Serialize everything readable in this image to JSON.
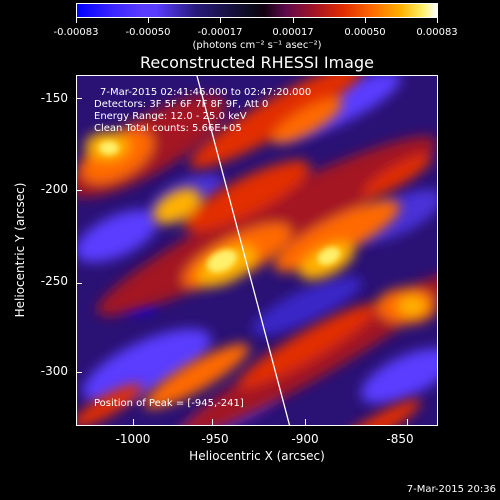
{
  "colorbar": {
    "ticks": [
      "-0.00083",
      "-0.00050",
      "-0.00017",
      "0.00017",
      "0.00050",
      "0.00083"
    ],
    "units_text": "(photons cm⁻² s⁻¹ asec⁻²)"
  },
  "title": "Reconstructed RHESSI Image",
  "annotations": {
    "time": "7-Mar-2015 02:41:46.000 to 02:47:20.000",
    "detectors": "Detectors: 3F 5F 6F 7F 8F 9F, Att 0",
    "energy": "Energy Range: 12.0 - 25.0 keV",
    "clean": "Clean    Total counts: 5.66E+05",
    "peak": "Position of Peak = [-945,-241]"
  },
  "axes": {
    "xlabel": "Heliocentric X (arcsec)",
    "ylabel": "Heliocentric Y (arcsec)",
    "xticks": [
      "-1000",
      "-950",
      "-900",
      "-850"
    ],
    "yticks": [
      "-150",
      "-200",
      "-250",
      "-300"
    ]
  },
  "footer_timestamp": "7-Mar-2015 20:36",
  "chart_data": {
    "type": "heatmap",
    "title": "Reconstructed RHESSI Image",
    "xlabel": "Heliocentric X (arcsec)",
    "ylabel": "Heliocentric Y (arcsec)",
    "xlim": [
      -1031,
      -836
    ],
    "ylim": [
      -327,
      -137
    ],
    "colorbar_range": [
      -0.00083,
      0.00083
    ],
    "colorbar_units": "photons cm^-2 s^-1 asec^-2",
    "peak_position": [
      -945,
      -241
    ]
  },
  "colors": {
    "background": "#000000",
    "text": "#ffffff",
    "colormap": [
      "#0000ff",
      "#5a3cff",
      "#1b0b45",
      "#5e0a4c",
      "#e22d00",
      "#ff6a00",
      "#ffb200",
      "#ffffff"
    ]
  }
}
